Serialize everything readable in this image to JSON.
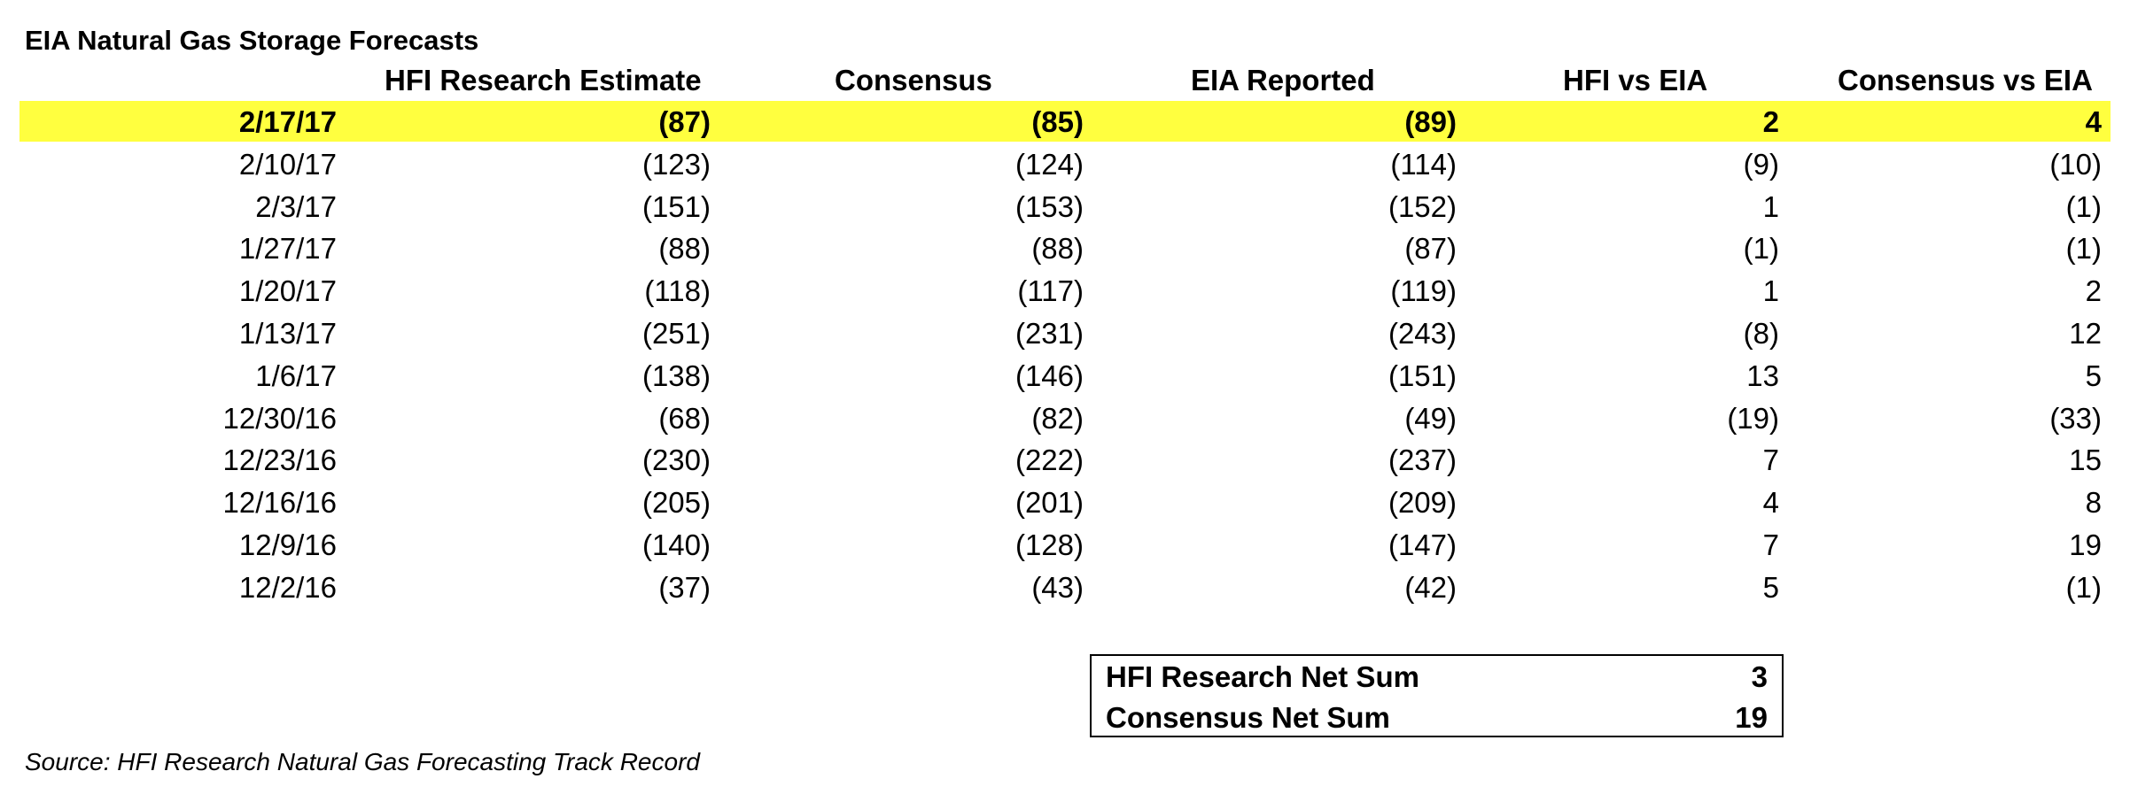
{
  "chart_data": {
    "type": "table",
    "title": "EIA Natural Gas Storage Forecasts",
    "columns": [
      "",
      "HFI Research Estimate",
      "Consensus",
      "EIA Reported",
      "HFI vs EIA",
      "Consensus vs EIA"
    ],
    "rows": [
      [
        "2/17/17",
        "(87)",
        "(85)",
        "(89)",
        "2",
        "4"
      ],
      [
        "2/10/17",
        "(123)",
        "(124)",
        "(114)",
        "(9)",
        "(10)"
      ],
      [
        "2/3/17",
        "(151)",
        "(153)",
        "(152)",
        "1",
        "(1)"
      ],
      [
        "1/27/17",
        "(88)",
        "(88)",
        "(87)",
        "(1)",
        "(1)"
      ],
      [
        "1/20/17",
        "(118)",
        "(117)",
        "(119)",
        "1",
        "2"
      ],
      [
        "1/13/17",
        "(251)",
        "(231)",
        "(243)",
        "(8)",
        "12"
      ],
      [
        "1/6/17",
        "(138)",
        "(146)",
        "(151)",
        "13",
        "5"
      ],
      [
        "12/30/16",
        "(68)",
        "(82)",
        "(49)",
        "(19)",
        "(33)"
      ],
      [
        "12/23/16",
        "(230)",
        "(222)",
        "(237)",
        "7",
        "15"
      ],
      [
        "12/16/16",
        "(205)",
        "(201)",
        "(209)",
        "4",
        "8"
      ],
      [
        "12/9/16",
        "(140)",
        "(128)",
        "(147)",
        "7",
        "19"
      ],
      [
        "12/2/16",
        "(37)",
        "(43)",
        "(42)",
        "5",
        "(1)"
      ]
    ],
    "highlighted_row": 0,
    "highlight_color": "#ffff3f",
    "summary": [
      {
        "label": "HFI Research Net Sum",
        "value": "3"
      },
      {
        "label": "Consensus Net Sum",
        "value": "19"
      }
    ],
    "source": "Source: HFI Research Natural Gas Forecasting Track Record"
  }
}
